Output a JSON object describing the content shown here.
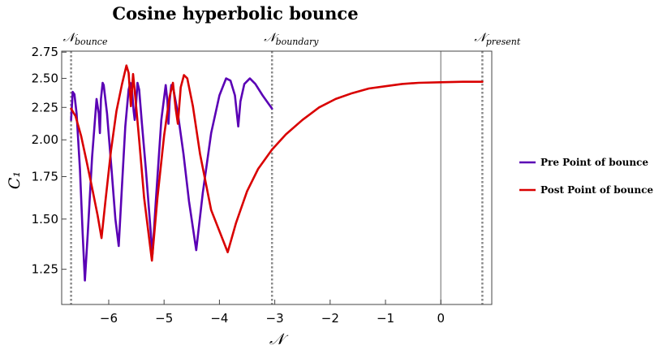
{
  "chart_data": {
    "type": "line",
    "title": "Cosine hyperbolic bounce",
    "xlabel": "𝒩",
    "ylabel": "C₁",
    "xlim": [
      -6.85,
      0.92
    ],
    "ylim": [
      1.1,
      2.76
    ],
    "y_scale": "log",
    "x_ticks": [
      {
        "v": -6,
        "label": "−6"
      },
      {
        "v": -5,
        "label": "−5"
      },
      {
        "v": -4,
        "label": "−4"
      },
      {
        "v": -3,
        "label": "−3"
      },
      {
        "v": -2,
        "label": "−2"
      },
      {
        "v": -1,
        "label": "−1"
      },
      {
        "v": 0,
        "label": "0"
      }
    ],
    "y_ticks": [
      {
        "v": 1.25,
        "label": "1.25"
      },
      {
        "v": 1.5,
        "label": "1.50"
      },
      {
        "v": 1.75,
        "label": "1.75"
      },
      {
        "v": 2.0,
        "label": "2.00"
      },
      {
        "v": 2.25,
        "label": "2.25"
      },
      {
        "v": 2.5,
        "label": "2.50"
      },
      {
        "v": 2.75,
        "label": "2.75"
      }
    ],
    "vertical_markers": [
      {
        "x": -6.68,
        "label": "𝒩",
        "subscript": "bounce",
        "style": "dotted"
      },
      {
        "x": -3.05,
        "label": "𝒩",
        "subscript": "boundary",
        "style": "dotted"
      },
      {
        "x": 0.0,
        "label": "",
        "subscript": "",
        "style": "solid"
      },
      {
        "x": 0.75,
        "label": "𝒩",
        "subscript": "present",
        "style": "dotted"
      }
    ],
    "legend_position": "right",
    "series": [
      {
        "name": "Pre Point of bounce",
        "color": "#5a00b5",
        "points": [
          [
            -6.68,
            2.15
          ],
          [
            -6.65,
            2.38
          ],
          [
            -6.62,
            2.36
          ],
          [
            -6.58,
            2.2
          ],
          [
            -6.52,
            1.8
          ],
          [
            -6.47,
            1.42
          ],
          [
            -6.43,
            1.2
          ],
          [
            -6.38,
            1.42
          ],
          [
            -6.3,
            1.88
          ],
          [
            -6.22,
            2.32
          ],
          [
            -6.18,
            2.2
          ],
          [
            -6.16,
            2.05
          ],
          [
            -6.14,
            2.32
          ],
          [
            -6.11,
            2.46
          ],
          [
            -6.09,
            2.44
          ],
          [
            -6.03,
            2.2
          ],
          [
            -5.95,
            1.8
          ],
          [
            -5.88,
            1.5
          ],
          [
            -5.82,
            1.36
          ],
          [
            -5.76,
            1.7
          ],
          [
            -5.7,
            2.1
          ],
          [
            -5.64,
            2.4
          ],
          [
            -5.61,
            2.46
          ],
          [
            -5.58,
            2.4
          ],
          [
            -5.55,
            2.22
          ],
          [
            -5.53,
            2.15
          ],
          [
            -5.51,
            2.25
          ],
          [
            -5.48,
            2.46
          ],
          [
            -5.45,
            2.4
          ],
          [
            -5.4,
            2.12
          ],
          [
            -5.33,
            1.8
          ],
          [
            -5.26,
            1.5
          ],
          [
            -5.21,
            1.32
          ],
          [
            -5.15,
            1.6
          ],
          [
            -5.05,
            2.15
          ],
          [
            -4.97,
            2.44
          ],
          [
            -4.94,
            2.3
          ],
          [
            -4.92,
            2.12
          ],
          [
            -4.9,
            2.3
          ],
          [
            -4.87,
            2.44
          ],
          [
            -4.83,
            2.4
          ],
          [
            -4.75,
            2.2
          ],
          [
            -4.65,
            1.9
          ],
          [
            -4.55,
            1.6
          ],
          [
            -4.42,
            1.34
          ],
          [
            -4.3,
            1.65
          ],
          [
            -4.15,
            2.05
          ],
          [
            -4.0,
            2.35
          ],
          [
            -3.88,
            2.5
          ],
          [
            -3.8,
            2.48
          ],
          [
            -3.72,
            2.35
          ],
          [
            -3.66,
            2.1
          ],
          [
            -3.62,
            2.3
          ],
          [
            -3.55,
            2.45
          ],
          [
            -3.45,
            2.5
          ],
          [
            -3.35,
            2.45
          ],
          [
            -3.22,
            2.35
          ],
          [
            -3.05,
            2.24
          ]
        ]
      },
      {
        "name": "Post Point of bounce",
        "color": "#d90000",
        "points": [
          [
            -6.68,
            2.24
          ],
          [
            -6.6,
            2.18
          ],
          [
            -6.5,
            2.03
          ],
          [
            -6.4,
            1.85
          ],
          [
            -6.3,
            1.68
          ],
          [
            -6.2,
            1.52
          ],
          [
            -6.13,
            1.4
          ],
          [
            -6.06,
            1.6
          ],
          [
            -5.96,
            1.92
          ],
          [
            -5.86,
            2.22
          ],
          [
            -5.76,
            2.45
          ],
          [
            -5.68,
            2.62
          ],
          [
            -5.64,
            2.55
          ],
          [
            -5.6,
            2.26
          ],
          [
            -5.56,
            2.54
          ],
          [
            -5.52,
            2.34
          ],
          [
            -5.45,
            2.0
          ],
          [
            -5.36,
            1.62
          ],
          [
            -5.22,
            1.29
          ],
          [
            -5.12,
            1.62
          ],
          [
            -5.0,
            2.03
          ],
          [
            -4.9,
            2.34
          ],
          [
            -4.84,
            2.46
          ],
          [
            -4.79,
            2.24
          ],
          [
            -4.75,
            2.12
          ],
          [
            -4.7,
            2.42
          ],
          [
            -4.64,
            2.53
          ],
          [
            -4.58,
            2.5
          ],
          [
            -4.48,
            2.26
          ],
          [
            -4.35,
            1.9
          ],
          [
            -4.15,
            1.55
          ],
          [
            -3.85,
            1.33
          ],
          [
            -3.7,
            1.48
          ],
          [
            -3.5,
            1.66
          ],
          [
            -3.3,
            1.8
          ],
          [
            -3.05,
            1.93
          ],
          [
            -2.8,
            2.04
          ],
          [
            -2.5,
            2.15
          ],
          [
            -2.2,
            2.25
          ],
          [
            -1.9,
            2.32
          ],
          [
            -1.6,
            2.37
          ],
          [
            -1.3,
            2.41
          ],
          [
            -1.0,
            2.43
          ],
          [
            -0.7,
            2.45
          ],
          [
            -0.4,
            2.46
          ],
          [
            0.0,
            2.465
          ],
          [
            0.4,
            2.47
          ],
          [
            0.75,
            2.47
          ]
        ]
      }
    ]
  }
}
